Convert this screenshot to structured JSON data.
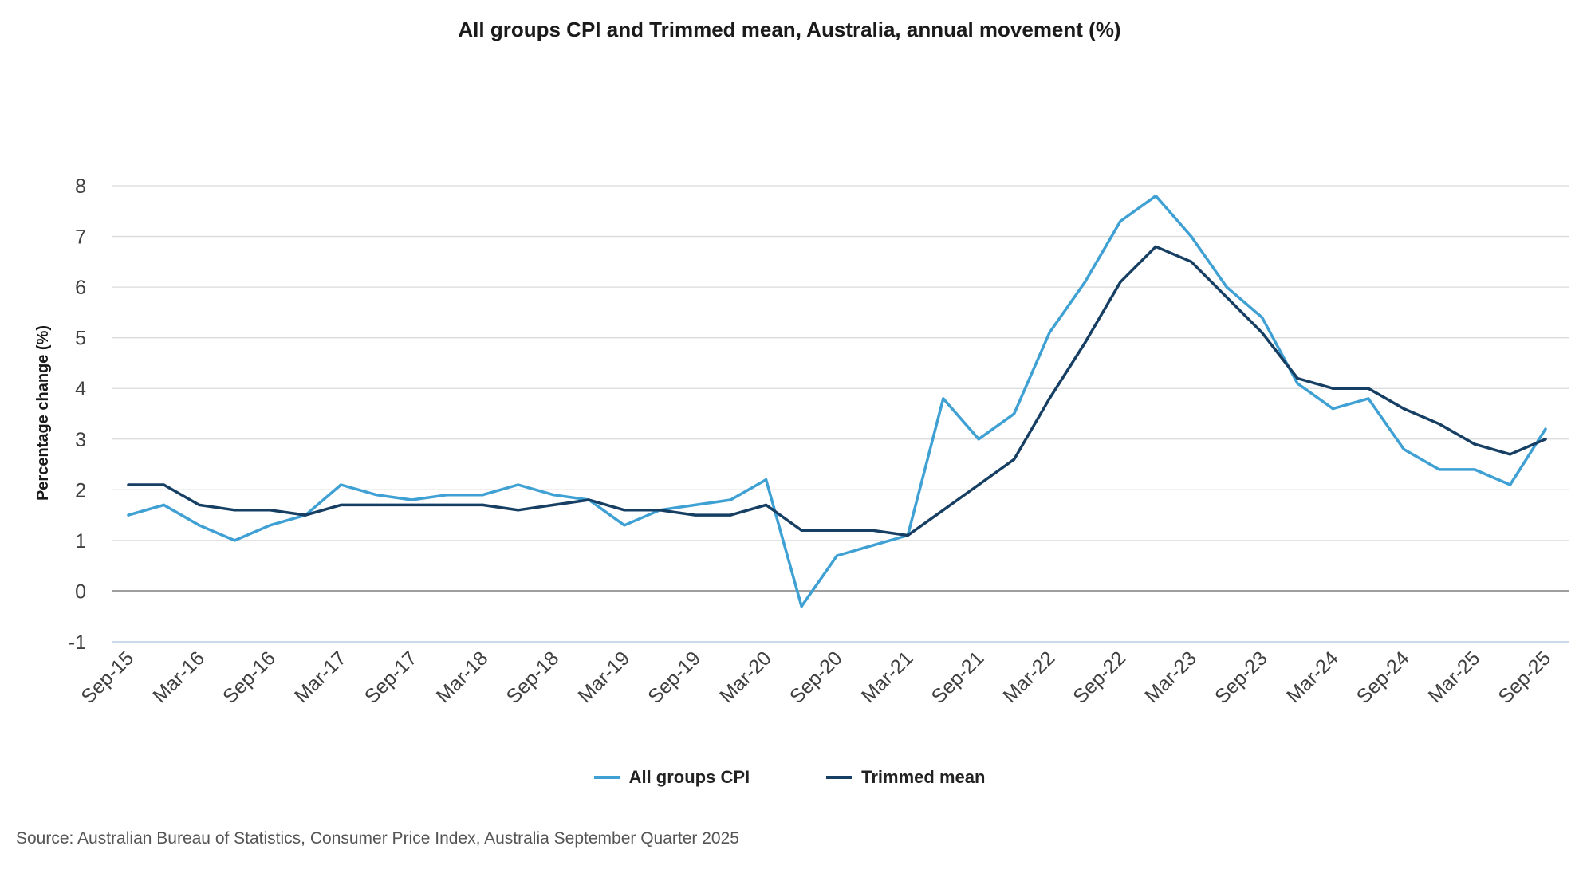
{
  "colors": {
    "cpi": "#3fa0d4",
    "trimmed": "#163f63",
    "grid": "#dadada",
    "zero": "#9e9e9e",
    "bottom_axis": "#b8cde0"
  },
  "chart_data": {
    "type": "line",
    "title": "All groups CPI and Trimmed mean, Australia, annual movement (%)",
    "xlabel": "",
    "ylabel": "Percentage change (%)",
    "ylim": [
      -1,
      8
    ],
    "yticks": [
      -1,
      0,
      1,
      2,
      3,
      4,
      5,
      6,
      7,
      8
    ],
    "grid": true,
    "legend_position": "bottom",
    "x": [
      "Sep-15",
      "Dec-15",
      "Mar-16",
      "Jun-16",
      "Sep-16",
      "Dec-16",
      "Mar-17",
      "Jun-17",
      "Sep-17",
      "Dec-17",
      "Mar-18",
      "Jun-18",
      "Sep-18",
      "Dec-18",
      "Mar-19",
      "Jun-19",
      "Sep-19",
      "Dec-19",
      "Mar-20",
      "Jun-20",
      "Sep-20",
      "Dec-20",
      "Mar-21",
      "Jun-21",
      "Sep-21",
      "Dec-21",
      "Mar-22",
      "Jun-22",
      "Sep-22",
      "Dec-22",
      "Mar-23",
      "Jun-23",
      "Sep-23",
      "Dec-23",
      "Mar-24",
      "Jun-24",
      "Sep-24",
      "Dec-24",
      "Mar-25",
      "Jun-25",
      "Sep-25"
    ],
    "x_tick_labels": [
      "Sep-15",
      "Mar-16",
      "Sep-16",
      "Mar-17",
      "Sep-17",
      "Mar-18",
      "Sep-18",
      "Mar-19",
      "Sep-19",
      "Mar-20",
      "Sep-20",
      "Mar-21",
      "Sep-21",
      "Mar-22",
      "Sep-22",
      "Mar-23",
      "Sep-23",
      "Mar-24",
      "Sep-24",
      "Mar-25",
      "Sep-25"
    ],
    "series": [
      {
        "name": "All groups CPI",
        "values": [
          1.5,
          1.7,
          1.3,
          1.0,
          1.3,
          1.5,
          2.1,
          1.9,
          1.8,
          1.9,
          1.9,
          2.1,
          1.9,
          1.8,
          1.3,
          1.6,
          1.7,
          1.8,
          2.2,
          -0.3,
          0.7,
          0.9,
          1.1,
          3.8,
          3.0,
          3.5,
          5.1,
          6.1,
          7.3,
          7.8,
          7.0,
          6.0,
          5.4,
          4.1,
          3.6,
          3.8,
          2.8,
          2.4,
          2.4,
          2.1,
          3.2
        ]
      },
      {
        "name": "Trimmed mean",
        "values": [
          2.1,
          2.1,
          1.7,
          1.6,
          1.6,
          1.5,
          1.7,
          1.7,
          1.7,
          1.7,
          1.7,
          1.6,
          1.7,
          1.8,
          1.6,
          1.6,
          1.5,
          1.5,
          1.7,
          1.2,
          1.2,
          1.2,
          1.1,
          1.6,
          2.1,
          2.6,
          3.8,
          4.9,
          6.1,
          6.8,
          6.5,
          5.8,
          5.1,
          4.2,
          4.0,
          4.0,
          3.6,
          3.3,
          2.9,
          2.7,
          3.0
        ]
      }
    ]
  },
  "source": "Source: Australian Bureau of Statistics, Consumer Price Index, Australia September Quarter 2025"
}
